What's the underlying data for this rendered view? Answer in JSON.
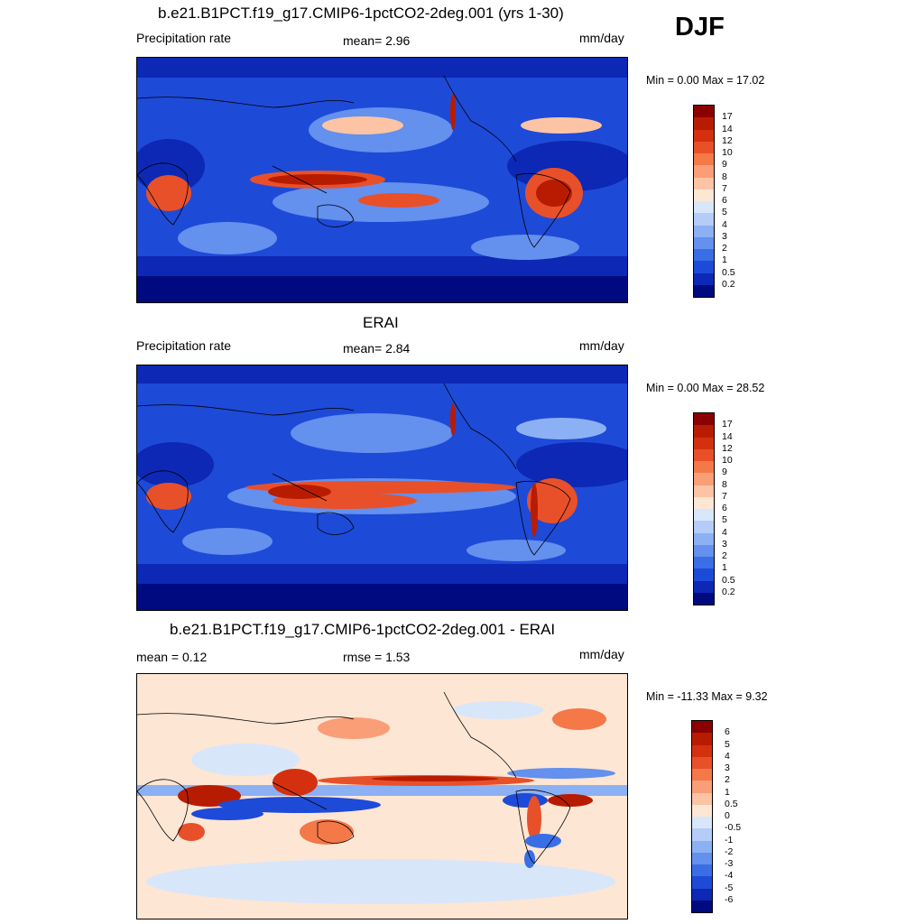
{
  "season": "DJF",
  "panels": [
    {
      "title": "b.e21.B1PCT.f19_g17.CMIP6-1pctCO2-2deg.001 (yrs 1-30)",
      "left_text": "Precipitation rate",
      "center_text": "mean=   2.96",
      "right_text": "mm/day",
      "minmax": "Min =   0.00 Max =  17.02"
    },
    {
      "title": "ERAI",
      "left_text": "Precipitation rate",
      "center_text": "mean=   2.84",
      "right_text": "mm/day",
      "minmax": "Min =   0.00 Max =  28.52"
    },
    {
      "title": "b.e21.B1PCT.f19_g17.CMIP6-1pctCO2-2deg.001 - ERAI",
      "left_text": "mean =   0.12",
      "center_text": "rmse =   1.53",
      "right_text": "mm/day",
      "minmax": "Min = -11.33 Max =   9.32"
    }
  ],
  "colorbars": {
    "precip": {
      "labels": [
        "17",
        "14",
        "12",
        "10",
        "9",
        "8",
        "7",
        "6",
        "5",
        "4",
        "3",
        "2",
        "1",
        "0.5",
        "0.2"
      ],
      "colors": [
        "#8b0000",
        "#b81c00",
        "#d43010",
        "#e8502a",
        "#f47848",
        "#fa9e78",
        "#fcc4a4",
        "#fde6d4",
        "#d8e6fa",
        "#b4ccf8",
        "#8cb0f4",
        "#6490ee",
        "#3a6ee6",
        "#1e4ad8",
        "#0c28b4",
        "#000a80"
      ]
    },
    "diff": {
      "labels": [
        "6",
        "5",
        "4",
        "3",
        "2",
        "1",
        "0.5",
        "0",
        "-0.5",
        "-1",
        "-2",
        "-3",
        "-4",
        "-5",
        "-6"
      ],
      "colors": [
        "#8b0000",
        "#b81c00",
        "#d43010",
        "#e8502a",
        "#f47848",
        "#fa9e78",
        "#fcc4a4",
        "#fde6d4",
        "#d8e6fa",
        "#b4ccf8",
        "#8cb0f4",
        "#6490ee",
        "#3a6ee6",
        "#1e4ad8",
        "#0c28b4",
        "#000a80"
      ]
    }
  }
}
